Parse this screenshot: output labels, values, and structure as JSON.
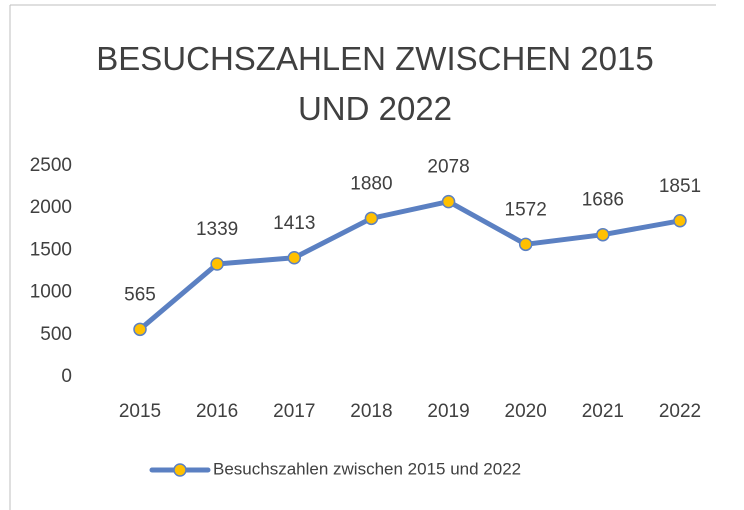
{
  "chart_data": {
    "type": "line",
    "title": "BESUCHSZAHLEN ZWISCHEN 2015 UND 2022",
    "categories": [
      "2015",
      "2016",
      "2017",
      "2018",
      "2019",
      "2020",
      "2021",
      "2022"
    ],
    "series": [
      {
        "name": "Besuchszahlen zwischen 2015 und 2022",
        "color": "#5b80c2",
        "marker_color": "#ffc000",
        "values": [
          565,
          1339,
          1413,
          1880,
          2078,
          1572,
          1686,
          1851
        ]
      }
    ],
    "ylim": [
      0,
      2500
    ],
    "yticks": [
      0,
      500,
      1000,
      1500,
      2000,
      2500
    ],
    "grid": false,
    "legend": "bottom"
  }
}
